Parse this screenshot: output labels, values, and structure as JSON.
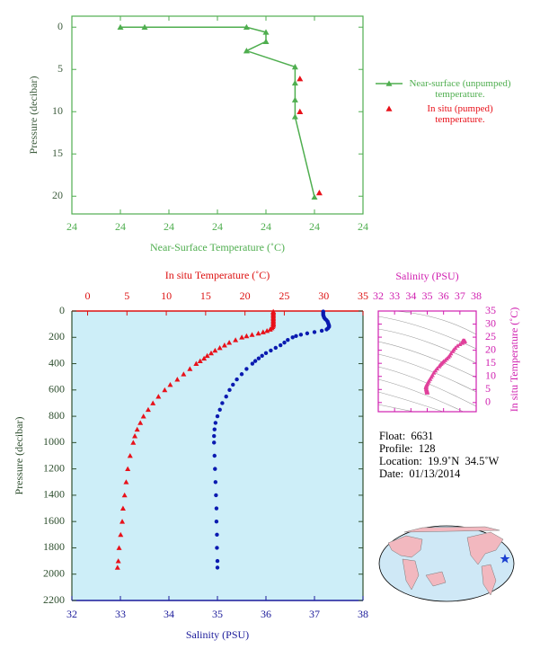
{
  "chart_data": [
    {
      "type": "profile-line",
      "x_label": "Near-Surface Temperature (˚C)",
      "y_label": "Pressure (decibar)",
      "axis_color": "#4fae4f",
      "label_color": "#3d5c3d",
      "xlim": [
        23.7,
        24.3
      ],
      "xticks": [
        {
          "value": 23.7,
          "label": "24"
        },
        {
          "value": 23.8,
          "label": "24"
        },
        {
          "value": 23.9,
          "label": "24"
        },
        24,
        {
          "value": 24.1,
          "label": "24"
        },
        {
          "value": 24.2,
          "label": "24"
        },
        {
          "value": 24.3,
          "label": "24"
        }
      ],
      "ylim": [
        -1.3,
        22.1
      ],
      "y_inverted": true,
      "yticks": [
        0,
        5,
        10,
        15,
        20
      ],
      "series": [
        {
          "name": "Near-surface (unpumped) temperature.",
          "color": "#4fae4f",
          "marker": "triangle",
          "line": true,
          "x": [
            23.8,
            23.85,
            24.06,
            24.1,
            24.1,
            24.06,
            24.16,
            24.16,
            24.16,
            24.16,
            24.2
          ],
          "y": [
            0,
            0,
            0,
            0.6,
            1.7,
            2.8,
            4.7,
            6.6,
            8.6,
            10.6,
            20.1
          ]
        },
        {
          "name": "In situ (pumped) temperature.",
          "color": "#e8111a",
          "marker": "triangle",
          "line": false,
          "x": [
            24.17,
            24.17,
            24.21
          ],
          "y": [
            6.1,
            10.0,
            19.6
          ]
        }
      ]
    },
    {
      "type": "profile-dual",
      "y_label": "Pressure (decibar)",
      "label_color": "#2f4f2f",
      "ylim": [
        0,
        2200
      ],
      "y_inverted": true,
      "yticks": [
        0,
        200,
        400,
        600,
        800,
        1000,
        1200,
        1400,
        1600,
        1800,
        2000,
        2200
      ],
      "background": "#cdeef8",
      "top_axis": {
        "label": "In situ Temperature (˚C)",
        "color": "#dd1111",
        "xlim": [
          -2,
          35
        ],
        "xticks": [
          0,
          5,
          10,
          15,
          20,
          25,
          30,
          35
        ]
      },
      "bottom_axis": {
        "label": "Salinity (PSU)",
        "color": "#1a1a9a",
        "xlim": [
          32,
          38
        ],
        "xticks": [
          32,
          33,
          34,
          35,
          36,
          37,
          38
        ]
      },
      "y": [
        4,
        10,
        20,
        30,
        40,
        50,
        60,
        70,
        80,
        90,
        100,
        110,
        120,
        130,
        140,
        150,
        160,
        170,
        180,
        190,
        200,
        220,
        240,
        260,
        280,
        300,
        320,
        340,
        360,
        380,
        400,
        440,
        480,
        520,
        560,
        600,
        650,
        700,
        750,
        800,
        850,
        900,
        950,
        1000,
        1100,
        1200,
        1300,
        1400,
        1500,
        1600,
        1700,
        1800,
        1900,
        1950
      ],
      "series": [
        {
          "axis": "top",
          "color": "#e8111a",
          "marker": "triangle",
          "values": [
            23.6,
            23.6,
            23.6,
            23.6,
            23.6,
            23.6,
            23.6,
            23.6,
            23.6,
            23.6,
            23.6,
            23.6,
            23.5,
            23.4,
            23.2,
            22.8,
            22.3,
            21.7,
            20.9,
            20.2,
            19.6,
            18.8,
            18.0,
            17.4,
            16.8,
            16.2,
            15.7,
            15.2,
            14.8,
            14.3,
            13.8,
            13.0,
            12.2,
            11.4,
            10.5,
            9.8,
            9.0,
            8.3,
            7.7,
            7.1,
            6.7,
            6.3,
            6.0,
            5.8,
            5.4,
            5.1,
            4.9,
            4.7,
            4.5,
            4.4,
            4.2,
            4.0,
            3.9,
            3.8
          ]
        },
        {
          "axis": "bottom",
          "color": "#0a1ab0",
          "marker": "dot",
          "values": [
            37.18,
            37.18,
            37.18,
            37.18,
            37.19,
            37.2,
            37.22,
            37.25,
            37.27,
            37.28,
            37.29,
            37.3,
            37.3,
            37.28,
            37.25,
            37.15,
            37.0,
            36.85,
            36.72,
            36.62,
            36.55,
            36.45,
            36.38,
            36.3,
            36.2,
            36.1,
            36.0,
            35.92,
            35.85,
            35.78,
            35.72,
            35.6,
            35.5,
            35.4,
            35.32,
            35.25,
            35.18,
            35.1,
            35.05,
            35.0,
            34.96,
            34.94,
            34.93,
            34.93,
            34.94,
            34.95,
            34.96,
            34.97,
            34.98,
            34.98,
            34.99,
            34.99,
            35.0,
            35.0
          ]
        }
      ]
    },
    {
      "type": "ts-scatter",
      "x_label": "Salinity (PSU)",
      "y_label": "In situ Temperature (˚C)",
      "color": "#e0409b",
      "axis_color": "#d020b0",
      "xlim": [
        32,
        38
      ],
      "xticks": [
        32,
        33,
        34,
        35,
        36,
        37,
        38
      ],
      "ylim": [
        -3.5,
        35
      ],
      "yticks": [
        0,
        5,
        10,
        15,
        20,
        25,
        30,
        35
      ]
    }
  ],
  "info": {
    "lines": [
      "Float:  6631",
      "Profile:  128",
      "Location:  19.9˚N  34.5˚W",
      "Date:  01/13/2014"
    ]
  }
}
